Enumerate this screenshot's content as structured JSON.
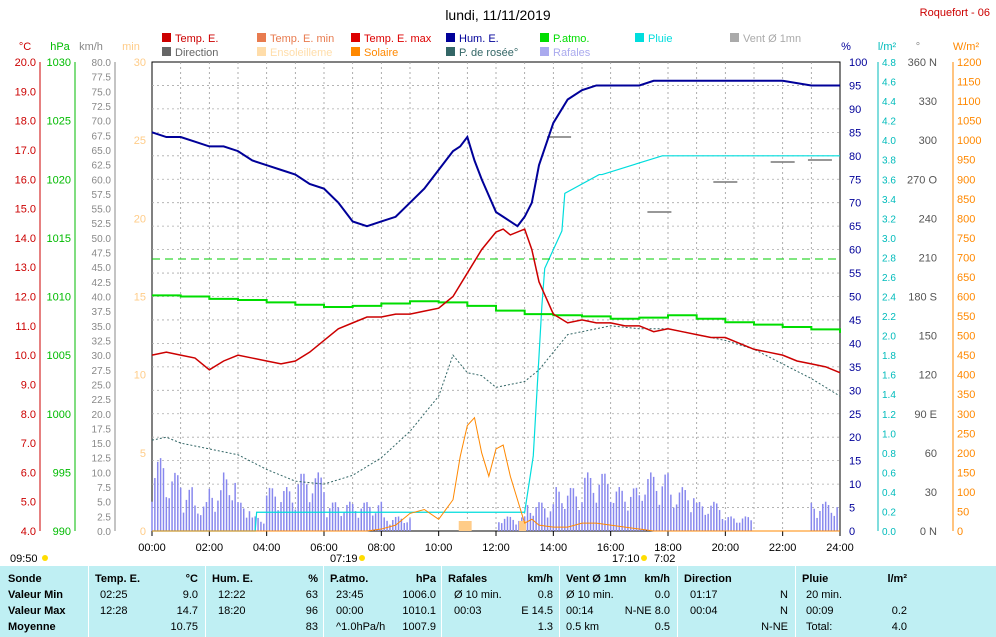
{
  "title": "lundi, 11/11/2019",
  "station": "Roquefort - 06",
  "colors": {
    "temp": "#cc0000",
    "hum": "#000099",
    "patm": "#00dd00",
    "rain": "#00cccc",
    "dew": "#336666",
    "solar": "#ff8800",
    "gust": "#8888ee",
    "vent": "#aaaaaa",
    "tempmin": "#ff8844",
    "sun": "#ffcc88",
    "dir": "#666666",
    "limegreen": "#00cc00",
    "table_bg": "#bfeff3"
  },
  "legend": [
    {
      "label": "Temp. E.",
      "color": "#cc0000"
    },
    {
      "label": "Temp. E. min",
      "color": "#e87b4f"
    },
    {
      "label": "Temp. E. max",
      "color": "#dd0000"
    },
    {
      "label": "Hum. E.",
      "color": "#000099"
    },
    {
      "label": "P.atmo.",
      "color": "#00dd00"
    },
    {
      "label": "Pluie",
      "color": "#00dddd"
    },
    {
      "label": "Vent Ø 1mn",
      "color": "#aaaaaa"
    },
    {
      "label": "Direction",
      "color": "#666666"
    },
    {
      "label": "Ensoleilleme",
      "color": "#ffddaa"
    },
    {
      "label": "Solaire",
      "color": "#ff8800"
    },
    {
      "label": "P. de rosée°",
      "color": "#336666"
    },
    {
      "label": "Rafales",
      "color": "#aaaaee"
    }
  ],
  "axis_units": {
    "temp": "°C",
    "patm": "hPa",
    "wind": "km/h",
    "sun": "min",
    "hum": "%",
    "rain": "l/m²",
    "dir": "°",
    "solar": "W/m²"
  },
  "axes": {
    "temp_ticks": [
      "20.0",
      "19.0",
      "18.0",
      "17.0",
      "16.0",
      "15.0",
      "14.0",
      "13.0",
      "12.0",
      "11.0",
      "10.0",
      "9.0",
      "8.0",
      "7.0",
      "6.0",
      "5.0",
      "4.0"
    ],
    "patm_ticks": [
      "1030",
      "1025",
      "1020",
      "1015",
      "1010",
      "1005",
      "1000",
      "995",
      "990"
    ],
    "wind_ticks": [
      "80.0",
      "77.5",
      "75.0",
      "72.5",
      "70.0",
      "67.5",
      "65.0",
      "62.5",
      "60.0",
      "57.5",
      "55.0",
      "52.5",
      "50.0",
      "47.5",
      "45.0",
      "42.5",
      "40.0",
      "37.5",
      "35.0",
      "32.5",
      "30.0",
      "27.5",
      "25.0",
      "22.5",
      "20.0",
      "17.5",
      "15.0",
      "12.5",
      "10.0",
      "7.5",
      "5.0",
      "2.5",
      "0.0"
    ],
    "sun_ticks": [
      "30",
      "25",
      "20",
      "15",
      "10",
      "5",
      "0"
    ],
    "hum_ticks": [
      "100",
      "95",
      "90",
      "85",
      "80",
      "75",
      "70",
      "65",
      "60",
      "55",
      "50",
      "45",
      "40",
      "35",
      "30",
      "25",
      "20",
      "15",
      "10",
      "5",
      "0"
    ],
    "rain_ticks": [
      "4.8",
      "4.6",
      "4.4",
      "4.2",
      "4.0",
      "3.8",
      "3.6",
      "3.4",
      "3.2",
      "3.0",
      "2.8",
      "2.6",
      "2.4",
      "2.2",
      "2.0",
      "1.8",
      "1.6",
      "1.4",
      "1.2",
      "1.0",
      "0.8",
      "0.6",
      "0.4",
      "0.2",
      "0.0"
    ],
    "dir_ticks": [
      "360 N",
      "330",
      "300",
      "270 O",
      "240",
      "210",
      "180 S",
      "150",
      "120",
      "90 E",
      "60",
      "30",
      "0 N"
    ],
    "solar_ticks": [
      "1200",
      "1150",
      "1100",
      "1050",
      "1000",
      "950",
      "900",
      "850",
      "800",
      "750",
      "700",
      "650",
      "600",
      "550",
      "500",
      "450",
      "400",
      "350",
      "300",
      "250",
      "200",
      "150",
      "100",
      "50",
      "0"
    ],
    "time_ticks": [
      "00:00",
      "02:00",
      "04:00",
      "06:00",
      "08:00",
      "10:00",
      "12:00",
      "14:00",
      "16:00",
      "18:00",
      "20:00",
      "22:00",
      "24:00"
    ]
  },
  "markers": {
    "left_time": "09:50",
    "sunrise": "07:19",
    "sunset": "17:10",
    "daylength": "7:02"
  },
  "chart_data": {
    "type": "line",
    "title": "lundi, 11/11/2019",
    "x_range": [
      "00:00",
      "24:00"
    ],
    "series": [
      {
        "name": "Temp. E.",
        "unit": "°C",
        "x_hours": [
          0,
          0.5,
          1,
          1.5,
          2,
          2.5,
          3,
          3.5,
          4,
          4.5,
          5,
          5.5,
          6,
          6.5,
          7,
          7.5,
          8,
          8.5,
          9,
          9.5,
          10,
          10.5,
          11,
          11.5,
          12,
          12.25,
          12.5,
          13,
          13.25,
          13.5,
          14,
          14.5,
          15,
          15.5,
          16,
          16.5,
          17,
          17.5,
          18,
          18.5,
          19,
          19.5,
          20,
          20.5,
          21,
          21.5,
          22,
          22.5,
          23,
          23.5,
          24
        ],
        "values": [
          10.0,
          10.1,
          10.0,
          9.9,
          9.5,
          9.8,
          10.0,
          9.9,
          9.8,
          9.7,
          9.8,
          10.1,
          10.5,
          10.9,
          11.1,
          11.3,
          11.3,
          11.4,
          11.4,
          11.5,
          11.6,
          12.0,
          12.8,
          13.6,
          14.2,
          14.3,
          14.1,
          14.3,
          13.6,
          12.5,
          11.4,
          11.1,
          11.2,
          11.1,
          11.1,
          11.0,
          11.0,
          10.8,
          10.9,
          10.8,
          10.7,
          10.6,
          10.6,
          10.4,
          10.2,
          10.1,
          10.0,
          9.8,
          9.7,
          9.6,
          9.4
        ]
      },
      {
        "name": "Hum. E.",
        "unit": "%",
        "x_hours": [
          0,
          0.5,
          1,
          1.5,
          2,
          2.5,
          3,
          3.5,
          4,
          4.5,
          5,
          5.5,
          6,
          6.5,
          7,
          7.5,
          8,
          8.5,
          9,
          9.5,
          10,
          10.5,
          10.75,
          11,
          11.25,
          11.5,
          12,
          12.25,
          12.5,
          12.75,
          13,
          13.25,
          13.5,
          14,
          14.5,
          15,
          15.5,
          16,
          17,
          17.5,
          18,
          18.5,
          19,
          19.5,
          20,
          21,
          22,
          23,
          24
        ],
        "values": [
          85,
          84,
          84,
          83,
          82,
          82,
          81,
          79,
          78,
          77,
          76,
          74,
          73,
          70,
          66,
          65,
          66,
          67,
          70,
          73,
          77,
          81,
          82,
          84,
          79,
          75,
          68,
          67,
          66,
          65,
          67,
          70,
          78,
          87,
          92,
          94,
          95,
          95,
          95,
          96,
          96,
          96,
          96,
          96,
          96,
          96,
          96,
          95,
          95
        ]
      },
      {
        "name": "P.atmo.",
        "unit": "hPa",
        "x_hours": [
          0,
          1,
          2,
          3,
          4,
          5,
          6,
          7,
          8,
          9,
          10,
          11,
          12,
          13,
          14,
          15,
          16,
          17,
          18,
          19,
          20,
          21,
          22,
          23,
          24
        ],
        "values": [
          1010.1,
          1010.0,
          1009.8,
          1009.7,
          1009.5,
          1009.3,
          1009.1,
          1009.2,
          1009.4,
          1009.6,
          1009.5,
          1009.2,
          1008.8,
          1008.5,
          1008.4,
          1008.3,
          1008.1,
          1008.2,
          1008.4,
          1008.1,
          1007.8,
          1007.6,
          1007.4,
          1007.2,
          1006.9
        ]
      },
      {
        "name": "Pluie",
        "unit": "l/m²",
        "x_hours": [
          0,
          3.6,
          3.65,
          12.9,
          13.0,
          13.3,
          13.6,
          13.7,
          14.3,
          14.4,
          15.6,
          15.7,
          17.8,
          17.9,
          24
        ],
        "values": [
          0,
          0,
          0.2,
          0.2,
          0.2,
          0.8,
          2.4,
          2.8,
          3.2,
          3.6,
          3.8,
          3.8,
          4.0,
          4.0,
          4.0
        ]
      },
      {
        "name": "P. de rosée°",
        "unit": "°C",
        "x_hours": [
          0,
          0.5,
          1,
          2,
          3,
          4,
          5,
          6,
          7,
          8,
          9,
          10,
          10.5,
          11,
          11.5,
          12,
          12.5,
          13,
          13.5,
          14,
          14.5,
          15,
          16,
          17,
          18,
          19,
          20,
          21,
          22,
          23,
          24
        ],
        "values": [
          7.1,
          7.2,
          7.0,
          6.8,
          6.6,
          6.1,
          5.7,
          5.6,
          5.9,
          6.5,
          7.4,
          8.6,
          10.0,
          9.4,
          9.3,
          8.9,
          9.0,
          9.1,
          9.5,
          10.1,
          10.7,
          10.8,
          11.0,
          10.9,
          10.9,
          10.7,
          10.5,
          10.2,
          9.7,
          9.2,
          8.6
        ]
      },
      {
        "name": "Solaire",
        "unit": "W/m²",
        "x_hours": [
          0,
          7.5,
          8.0,
          8.5,
          9.0,
          9.5,
          10.0,
          10.5,
          10.75,
          11.0,
          11.25,
          11.5,
          11.75,
          12.0,
          12.25,
          12.5,
          12.75,
          13.0,
          13.25,
          13.5,
          14,
          14.5,
          15,
          15.5,
          16,
          16.5,
          17,
          17.5,
          24
        ],
        "values": [
          0,
          0,
          5,
          15,
          45,
          55,
          30,
          80,
          190,
          270,
          290,
          200,
          140,
          210,
          220,
          140,
          80,
          20,
          30,
          15,
          10,
          10,
          20,
          20,
          15,
          10,
          5,
          0,
          0
        ]
      },
      {
        "name": "Rafales",
        "unit": "km/h",
        "x_hours": [
          0,
          0.5,
          1,
          1.5,
          2,
          2.5,
          3,
          3.5,
          4,
          5,
          6,
          7,
          8,
          9,
          10,
          11,
          12,
          13,
          14,
          15,
          16,
          17,
          18,
          19,
          20,
          21,
          22,
          23,
          24
        ],
        "values": [
          12.5,
          10,
          7.5,
          5,
          7.5,
          10,
          5,
          2.5,
          7.5,
          10,
          5,
          5,
          2.5,
          0,
          0,
          0,
          2.5,
          5,
          7.5,
          10,
          7.5,
          10,
          7.5,
          5,
          2.5,
          0,
          0,
          5,
          7.5
        ]
      }
    ]
  },
  "table": {
    "headers": [
      "Sonde",
      "Temp. E.",
      "°C",
      "Hum. E.",
      "%",
      "P.atmo.",
      "hPa",
      "Rafales",
      "km/h",
      "Vent Ø 1mn",
      "km/h",
      "Direction",
      "Pluie",
      "l/m²"
    ],
    "rows": [
      {
        "label": "Valeur Min",
        "temp_t": "02:25",
        "temp_v": "9.0",
        "hum_t": "12:22",
        "hum_v": "63",
        "patm_t": "23:45",
        "patm_v": "1006.0",
        "raf_t": "Ø 10 min.",
        "raf_v": "0.8",
        "vent_t": "Ø 10 min.",
        "vent_v": "0.0",
        "dir_t": "01:17",
        "dir_v": "N",
        "pluie_t": "20 min.",
        "pluie_v": ""
      },
      {
        "label": "Valeur Max",
        "temp_t": "12:28",
        "temp_v": "14.7",
        "hum_t": "18:20",
        "hum_v": "96",
        "patm_t": "00:00",
        "patm_v": "1010.1",
        "raf_t": "00:03",
        "raf_v": "E 14.5",
        "vent_t": "00:14",
        "vent_v": "N-NE 8.0",
        "dir_t": "00:04",
        "dir_v": "N",
        "pluie_t": "00:09",
        "pluie_v": "0.2"
      },
      {
        "label": "Moyenne",
        "temp_t": "",
        "temp_v": "10.75",
        "hum_t": "",
        "hum_v": "83",
        "patm_t": "^1.0hPa/h",
        "patm_v": "1007.9",
        "raf_t": "",
        "raf_v": "1.3",
        "vent_t": "0.5 km",
        "vent_v": "0.5",
        "dir_t": "",
        "dir_v": "N-NE",
        "pluie_t": "Total:",
        "pluie_v": "4.0"
      }
    ]
  }
}
